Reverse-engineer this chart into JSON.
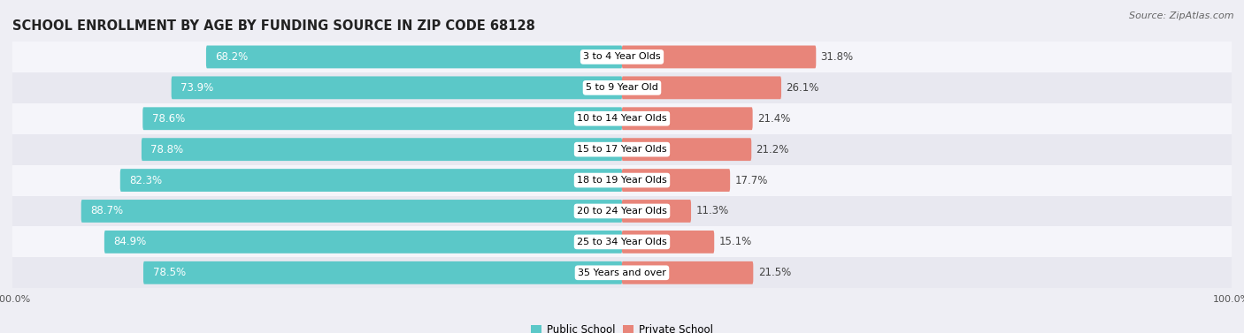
{
  "title": "SCHOOL ENROLLMENT BY AGE BY FUNDING SOURCE IN ZIP CODE 68128",
  "source": "Source: ZipAtlas.com",
  "categories": [
    "3 to 4 Year Olds",
    "5 to 9 Year Old",
    "10 to 14 Year Olds",
    "15 to 17 Year Olds",
    "18 to 19 Year Olds",
    "20 to 24 Year Olds",
    "25 to 34 Year Olds",
    "35 Years and over"
  ],
  "public_values": [
    68.2,
    73.9,
    78.6,
    78.8,
    82.3,
    88.7,
    84.9,
    78.5
  ],
  "private_values": [
    31.8,
    26.1,
    21.4,
    21.2,
    17.7,
    11.3,
    15.1,
    21.5
  ],
  "public_color": "#5BC8C8",
  "private_color": "#E8857A",
  "bg_color": "#EEEEF4",
  "row_bg_even": "#F5F5FA",
  "row_bg_odd": "#E8E8F0",
  "label_bg_color": "#FFFFFF",
  "title_fontsize": 10.5,
  "source_fontsize": 8,
  "bar_label_fontsize": 8.5,
  "category_fontsize": 8,
  "legend_fontsize": 8.5,
  "axis_fontsize": 8,
  "xlim_left": -100,
  "xlim_right": 100
}
